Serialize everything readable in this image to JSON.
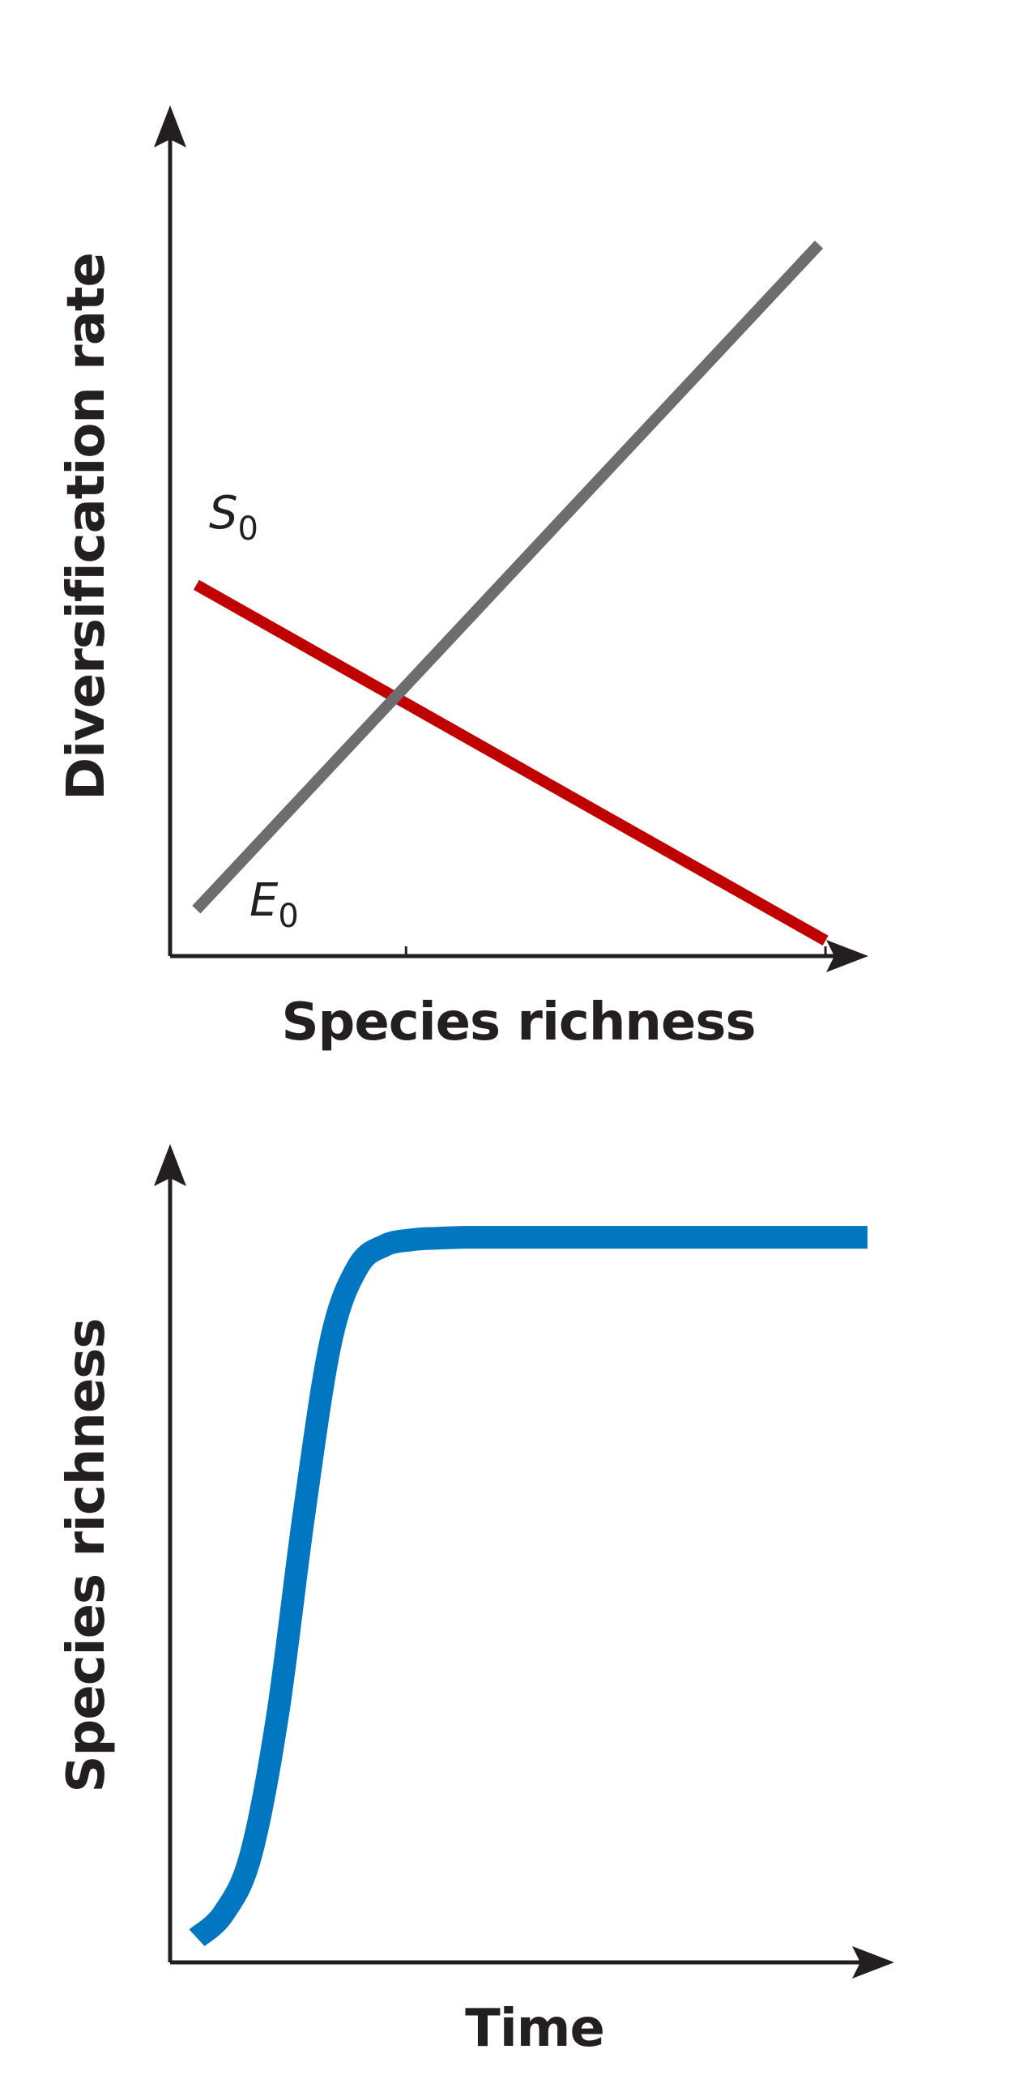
{
  "chart_data": [
    {
      "type": "line",
      "title": "",
      "xlabel": "Species richness",
      "ylabel": "Diversification rate",
      "grid": false,
      "legend": "none",
      "series": [
        {
          "name": "S",
          "subscript": "0",
          "color": "#c00000",
          "x": [
            0.04,
            1.0
          ],
          "y": [
            0.48,
            0.02
          ]
        },
        {
          "name": "E",
          "subscript": "0",
          "color": "#6d6d6d",
          "x": [
            0.04,
            0.99
          ],
          "y": [
            0.06,
            0.92
          ]
        }
      ],
      "xticks": [
        0.36,
        1.0
      ],
      "xlim": [
        0,
        1.1
      ],
      "ylim": [
        0,
        1.1
      ]
    },
    {
      "type": "line",
      "title": "",
      "xlabel": "Time",
      "ylabel": "Species richness",
      "grid": false,
      "legend": "none",
      "series": [
        {
          "color": "#0077c0",
          "x": [
            0.0,
            0.04,
            0.08,
            0.12,
            0.16,
            0.2,
            0.24,
            0.28,
            0.32,
            0.36,
            0.4,
            0.44,
            0.48,
            0.52,
            0.56,
            0.6,
            0.64,
            0.68,
            0.72,
            0.76,
            0.8,
            0.84,
            0.88,
            0.92,
            0.96,
            1.0
          ],
          "y": [
            0.03,
            0.06,
            0.13,
            0.3,
            0.55,
            0.76,
            0.85,
            0.876,
            0.883,
            0.885,
            0.886,
            0.886,
            0.886,
            0.886,
            0.886,
            0.886,
            0.886,
            0.886,
            0.886,
            0.886,
            0.886,
            0.886,
            0.886,
            0.886,
            0.886,
            0.886
          ]
        }
      ],
      "xlim": [
        -0.04,
        1.04
      ],
      "ylim": [
        0,
        1.0
      ]
    }
  ]
}
